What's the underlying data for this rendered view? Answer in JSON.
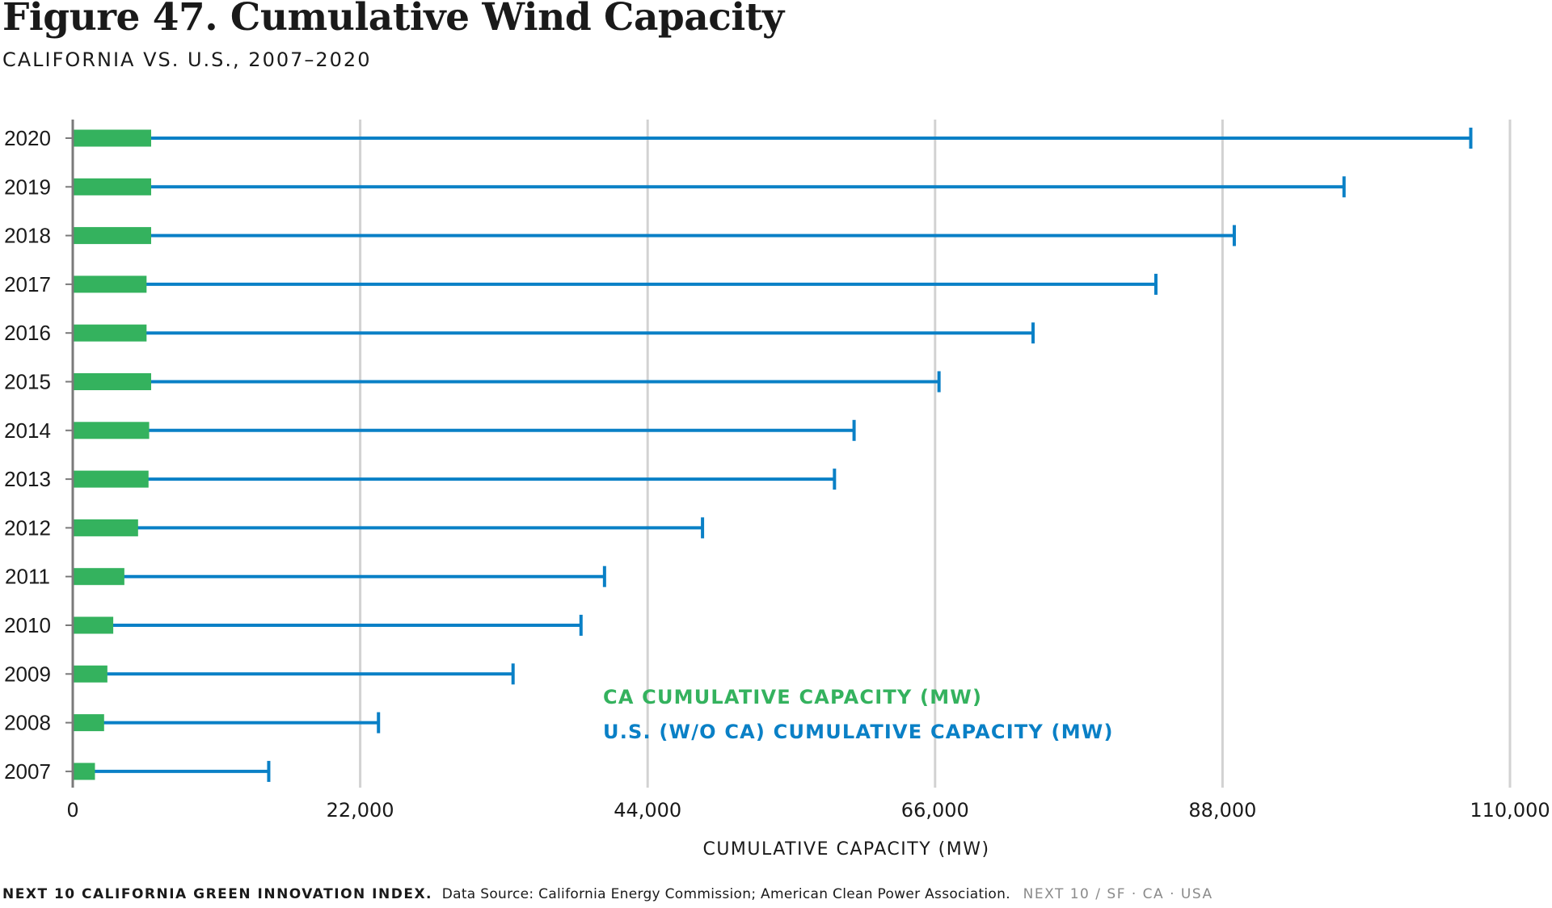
{
  "header": {
    "title": "Figure 47. Cumulative Wind Capacity",
    "subtitle": "CALIFORNIA VS. U.S., 2007–2020"
  },
  "footer": {
    "brand": "NEXT 10 CALIFORNIA GREEN INNOVATION INDEX.",
    "source": "Data Source: California Energy Commission; American Clean Power Association.",
    "tag": "NEXT 10  /  SF · CA · USA"
  },
  "colors": {
    "ca": "#34b25e",
    "us": "#0a80c6",
    "grid": "#d2d2d2",
    "axis": "#7a7a7a"
  },
  "chart_data": {
    "type": "bar",
    "orientation": "horizontal",
    "categories": [
      "2020",
      "2019",
      "2018",
      "2017",
      "2016",
      "2015",
      "2014",
      "2013",
      "2012",
      "2011",
      "2010",
      "2009",
      "2008",
      "2007"
    ],
    "series": [
      {
        "name": "CA CUMULATIVE CAPACITY (MW)",
        "values": [
          6000,
          6000,
          6000,
          5650,
          5650,
          6000,
          5850,
          5800,
          5000,
          3950,
          3100,
          2650,
          2400,
          1700
        ]
      },
      {
        "name": "U.S. (W/O CA) CUMULATIVE CAPACITY (MW)",
        "values": [
          107000,
          97300,
          88900,
          82900,
          73500,
          66300,
          59800,
          58300,
          48200,
          40700,
          38900,
          33700,
          23400,
          15000
        ]
      }
    ],
    "xlabel": "CUMULATIVE CAPACITY (MW)",
    "ylabel": "",
    "xlim": [
      0,
      110000
    ],
    "xticks": [
      0,
      22000,
      44000,
      66000,
      88000,
      110000
    ],
    "xtick_labels": [
      "0",
      "22,000",
      "44,000",
      "66,000",
      "88,000",
      "110,000"
    ],
    "grid": true,
    "legend_position": "bottom-center"
  }
}
